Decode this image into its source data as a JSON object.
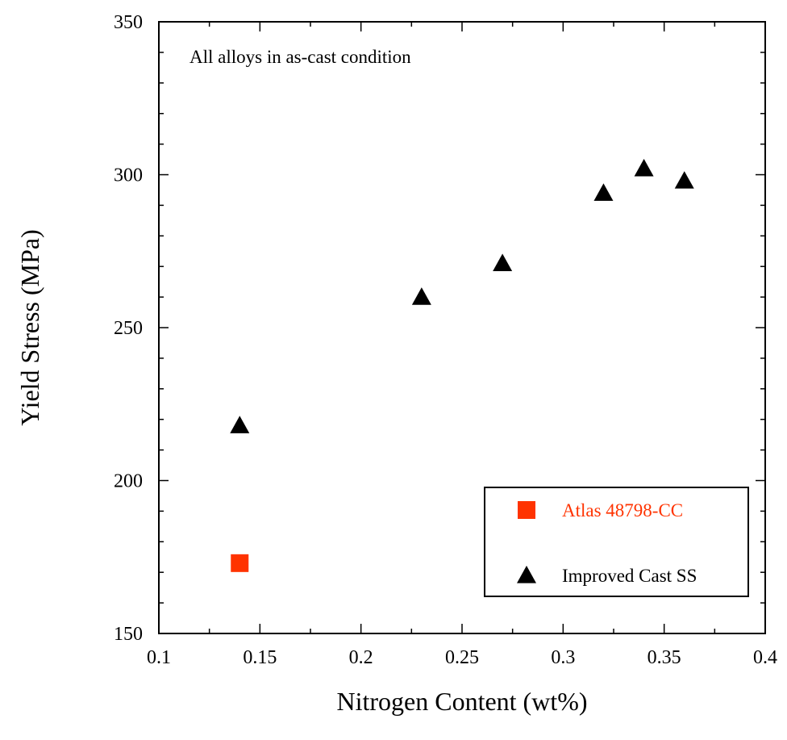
{
  "chart_data": {
    "type": "scatter",
    "xlabel": "Nitrogen Content (wt%)",
    "ylabel": "Yield Stress (MPa)",
    "xlim": [
      0.1,
      0.4
    ],
    "ylim": [
      150,
      350
    ],
    "xticks": [
      0.1,
      0.15,
      0.2,
      0.25,
      0.3,
      0.35,
      0.4
    ],
    "yticks": [
      150,
      200,
      250,
      300,
      350
    ],
    "x_tick_labels": [
      "0.1",
      "0.15",
      "0.2",
      "0.25",
      "0.3",
      "0.35",
      "0.4"
    ],
    "y_tick_labels": [
      "150",
      "200",
      "250",
      "300",
      "350"
    ],
    "annotation": "All alloys in as-cast condition",
    "grid": false,
    "legend_position": "bottom-right",
    "series": [
      {
        "name": "Atlas 48798-CC",
        "marker": "square",
        "color": "#ff3300",
        "points": [
          {
            "x": 0.14,
            "y": 173
          }
        ]
      },
      {
        "name": "Improved Cast SS",
        "marker": "triangle",
        "color": "#000000",
        "points": [
          {
            "x": 0.14,
            "y": 218
          },
          {
            "x": 0.23,
            "y": 260
          },
          {
            "x": 0.27,
            "y": 271
          },
          {
            "x": 0.32,
            "y": 294
          },
          {
            "x": 0.34,
            "y": 302
          },
          {
            "x": 0.36,
            "y": 298
          }
        ]
      }
    ]
  }
}
